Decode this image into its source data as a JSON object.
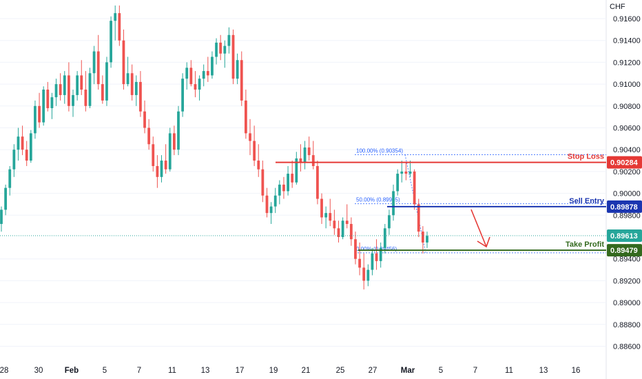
{
  "currency_label": "CHF",
  "chart_data": {
    "type": "candlestick",
    "ylim": [
      0.885,
      0.9175
    ],
    "y_ticks": [
      "0.91600",
      "0.91400",
      "0.91200",
      "0.91000",
      "0.90800",
      "0.90600",
      "0.90400",
      "0.90200",
      "0.90000",
      "0.89800",
      "0.89400",
      "0.89200",
      "0.89000",
      "0.88800",
      "0.88600"
    ],
    "x_ticks": [
      "28",
      "30",
      "Feb",
      "5",
      "7",
      "11",
      "13",
      "17",
      "19",
      "21",
      "25",
      "27",
      "Mar",
      "5",
      "7",
      "11",
      "13",
      "16"
    ],
    "bold_ticks": [
      "Feb",
      "Mar"
    ],
    "stop_loss": {
      "label": "Stop Loss",
      "value": 0.90284,
      "display": "0.90284",
      "color": "#e53935"
    },
    "sell_entry": {
      "label": "Sell Entry",
      "value": 0.89878,
      "display": "0.89878",
      "color": "#1a35b0"
    },
    "take_profit": {
      "label": "Take Profit",
      "value": 0.89479,
      "display": "0.89479",
      "color": "#33691e"
    },
    "last_price": {
      "value": 0.89613,
      "display": "0.89613",
      "color": "#26a69a"
    },
    "fib_levels": [
      {
        "label": "100.00% (0.90354)",
        "value": 0.90354
      },
      {
        "label": "50.00% (0.89905)",
        "value": 0.89905
      },
      {
        "label": "0.00% (0.89456)",
        "value": 0.89456
      }
    ],
    "colors": {
      "up": "#26a69a",
      "down": "#ef5350",
      "fib": "#2962ff",
      "grid": "#f0f3fa"
    },
    "candles": [
      [
        0.8972,
        0.8988,
        0.8965,
        0.8985
      ],
      [
        0.8985,
        0.9008,
        0.898,
        0.9005
      ],
      [
        0.9005,
        0.9025,
        0.8998,
        0.9022
      ],
      [
        0.9022,
        0.9045,
        0.9015,
        0.904
      ],
      [
        0.904,
        0.906,
        0.903,
        0.9052
      ],
      [
        0.9052,
        0.9062,
        0.9035,
        0.904
      ],
      [
        0.904,
        0.9048,
        0.9025,
        0.903
      ],
      [
        0.903,
        0.9058,
        0.9028,
        0.9055
      ],
      [
        0.9055,
        0.9085,
        0.905,
        0.908
      ],
      [
        0.908,
        0.9092,
        0.906,
        0.9065
      ],
      [
        0.9065,
        0.9098,
        0.9062,
        0.9095
      ],
      [
        0.9095,
        0.9102,
        0.9075,
        0.9078
      ],
      [
        0.9078,
        0.9092,
        0.9068,
        0.9088
      ],
      [
        0.9088,
        0.9105,
        0.908,
        0.91
      ],
      [
        0.91,
        0.911,
        0.9085,
        0.909
      ],
      [
        0.909,
        0.9112,
        0.9082,
        0.9108
      ],
      [
        0.9108,
        0.912,
        0.9075,
        0.908
      ],
      [
        0.908,
        0.9095,
        0.907,
        0.909
      ],
      [
        0.909,
        0.9112,
        0.9085,
        0.9108
      ],
      [
        0.9108,
        0.9122,
        0.909,
        0.9095
      ],
      [
        0.9095,
        0.9112,
        0.9075,
        0.908
      ],
      [
        0.908,
        0.9115,
        0.9078,
        0.911
      ],
      [
        0.911,
        0.9135,
        0.91,
        0.913
      ],
      [
        0.913,
        0.9145,
        0.9095,
        0.91
      ],
      [
        0.91,
        0.9108,
        0.9082,
        0.9085
      ],
      [
        0.9085,
        0.9125,
        0.908,
        0.912
      ],
      [
        0.912,
        0.9162,
        0.9115,
        0.9158
      ],
      [
        0.9158,
        0.9172,
        0.914,
        0.9165
      ],
      [
        0.9165,
        0.9172,
        0.9135,
        0.914
      ],
      [
        0.914,
        0.915,
        0.9095,
        0.91
      ],
      [
        0.91,
        0.9125,
        0.9098,
        0.911
      ],
      [
        0.911,
        0.9118,
        0.9085,
        0.909
      ],
      [
        0.909,
        0.9108,
        0.908,
        0.9102
      ],
      [
        0.9102,
        0.9112,
        0.907,
        0.9075
      ],
      [
        0.9075,
        0.9085,
        0.9055,
        0.906
      ],
      [
        0.906,
        0.9068,
        0.904,
        0.9045
      ],
      [
        0.9045,
        0.9052,
        0.902,
        0.9025
      ],
      [
        0.9025,
        0.9035,
        0.9005,
        0.9015
      ],
      [
        0.9015,
        0.9035,
        0.901,
        0.903
      ],
      [
        0.903,
        0.9045,
        0.9018,
        0.9022
      ],
      [
        0.9022,
        0.906,
        0.902,
        0.9055
      ],
      [
        0.9055,
        0.9062,
        0.9035,
        0.904
      ],
      [
        0.904,
        0.908,
        0.9035,
        0.9075
      ],
      [
        0.9075,
        0.911,
        0.907,
        0.9105
      ],
      [
        0.9105,
        0.912,
        0.9095,
        0.9115
      ],
      [
        0.9115,
        0.9122,
        0.9098,
        0.91
      ],
      [
        0.91,
        0.9112,
        0.9088,
        0.9095
      ],
      [
        0.9095,
        0.9108,
        0.9085,
        0.9105
      ],
      [
        0.9105,
        0.9118,
        0.9098,
        0.9112
      ],
      [
        0.9112,
        0.9125,
        0.9102,
        0.9108
      ],
      [
        0.9108,
        0.913,
        0.9105,
        0.9125
      ],
      [
        0.9125,
        0.9142,
        0.9118,
        0.9138
      ],
      [
        0.9138,
        0.9145,
        0.9122,
        0.9128
      ],
      [
        0.9128,
        0.914,
        0.9115,
        0.9135
      ],
      [
        0.9135,
        0.9152,
        0.9128,
        0.9145
      ],
      [
        0.9145,
        0.915,
        0.91,
        0.9105
      ],
      [
        0.9105,
        0.9128,
        0.91,
        0.9122
      ],
      [
        0.9122,
        0.913,
        0.908,
        0.9085
      ],
      [
        0.9085,
        0.9095,
        0.905,
        0.9055
      ],
      [
        0.9055,
        0.9068,
        0.9035,
        0.9048
      ],
      [
        0.9048,
        0.9062,
        0.9025,
        0.903
      ],
      [
        0.903,
        0.9045,
        0.9015,
        0.9022
      ],
      [
        0.9022,
        0.903,
        0.8992,
        0.8998
      ],
      [
        0.8998,
        0.9005,
        0.8978,
        0.8982
      ],
      [
        0.8982,
        0.8992,
        0.8972,
        0.8988
      ],
      [
        0.8988,
        0.9005,
        0.8982,
        0.8998
      ],
      [
        0.8998,
        0.9012,
        0.899,
        0.9008
      ],
      [
        0.9008,
        0.9015,
        0.8995,
        0.9002
      ],
      [
        0.9002,
        0.9025,
        0.8998,
        0.9018
      ],
      [
        0.9018,
        0.903,
        0.9005,
        0.901
      ],
      [
        0.901,
        0.9038,
        0.9008,
        0.9032
      ],
      [
        0.9032,
        0.9045,
        0.902,
        0.9028
      ],
      [
        0.9028,
        0.9048,
        0.9022,
        0.9042
      ],
      [
        0.9042,
        0.9052,
        0.903,
        0.9035
      ],
      [
        0.9035,
        0.9048,
        0.9022,
        0.9025
      ],
      [
        0.9025,
        0.903,
        0.899,
        0.8995
      ],
      [
        0.8995,
        0.9,
        0.8972,
        0.8978
      ],
      [
        0.8978,
        0.8988,
        0.8968,
        0.8982
      ],
      [
        0.8982,
        0.8995,
        0.897,
        0.8975
      ],
      [
        0.8975,
        0.8985,
        0.8962,
        0.8968
      ],
      [
        0.8968,
        0.8975,
        0.8955,
        0.896
      ],
      [
        0.896,
        0.8978,
        0.8958,
        0.8975
      ],
      [
        0.8975,
        0.899,
        0.8968,
        0.8972
      ],
      [
        0.8972,
        0.8978,
        0.8952,
        0.8958
      ],
      [
        0.8958,
        0.8965,
        0.8935,
        0.894
      ],
      [
        0.894,
        0.8955,
        0.8925,
        0.8932
      ],
      [
        0.8932,
        0.8945,
        0.8912,
        0.892
      ],
      [
        0.892,
        0.8935,
        0.8915,
        0.893
      ],
      [
        0.893,
        0.895,
        0.8925,
        0.8945
      ],
      [
        0.8945,
        0.8958,
        0.893,
        0.8938
      ],
      [
        0.8938,
        0.8955,
        0.8932,
        0.895
      ],
      [
        0.895,
        0.8972,
        0.8945,
        0.8968
      ],
      [
        0.8968,
        0.8985,
        0.8962,
        0.898
      ],
      [
        0.898,
        0.9008,
        0.8975,
        0.9002
      ],
      [
        0.9002,
        0.9022,
        0.8998,
        0.9018
      ],
      [
        0.9018,
        0.903,
        0.901,
        0.902
      ],
      [
        0.902,
        0.9028,
        0.9012,
        0.9018
      ],
      [
        0.9018,
        0.903,
        0.9015,
        0.902
      ],
      [
        0.902,
        0.9022,
        0.8985,
        0.899
      ],
      [
        0.899,
        0.8995,
        0.896,
        0.8965
      ],
      [
        0.8965,
        0.897,
        0.8945,
        0.8955
      ],
      [
        0.8955,
        0.8965,
        0.895,
        0.8961
      ]
    ]
  }
}
